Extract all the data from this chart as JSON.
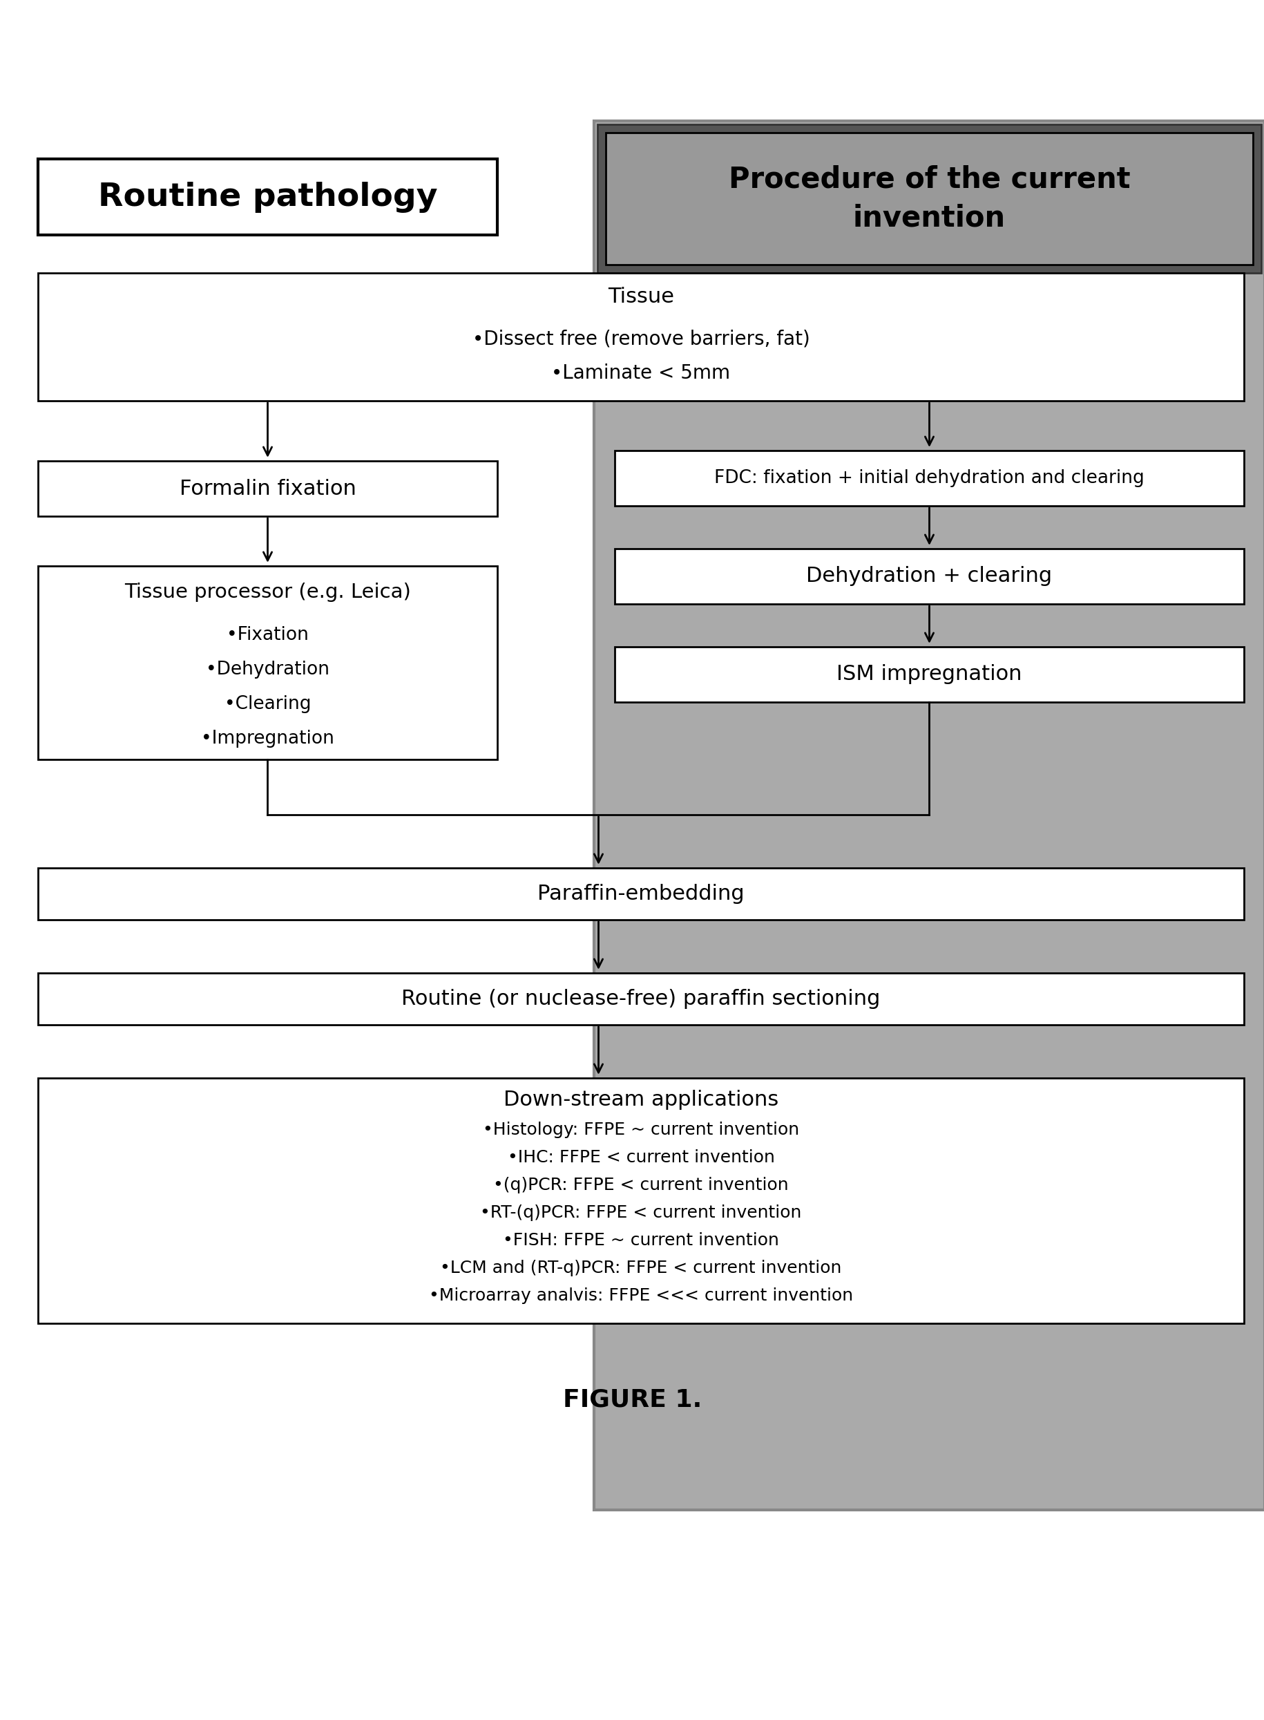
{
  "fig_width": 18.31,
  "fig_height": 24.89,
  "bg_color": "#ffffff",
  "figure_caption": "FIGURE 1.",
  "routine_header": "Routine pathology",
  "current_header_line1": "Procedure of the current",
  "current_header_line2": "invention",
  "tissue_title": "Tissue",
  "tissue_bullet1": "•Dissect free (remove barriers, fat)",
  "tissue_bullet2": "•Laminate < 5mm",
  "formalin_box": "Formalin fixation",
  "processor_title": "Tissue processor (e.g. Leica)",
  "processor_bullet1": "•Fixation",
  "processor_bullet2": "•Dehydration",
  "processor_bullet3": "•Clearing",
  "processor_bullet4": "•Impregnation",
  "fdc_box": "FDC: fixation + initial dehydration and clearing",
  "dehydration_box": "Dehydration + clearing",
  "ism_box": "ISM impregnation",
  "paraffin_box": "Paraffin-embedding",
  "sectioning_box": "Routine (or nuclease-free) paraffin sectioning",
  "downstream_title": "Down-stream applications",
  "downstream_bullet1": "•Histology: FFPE ~ current invention",
  "downstream_bullet2": "•IHC: FFPE < current invention",
  "downstream_bullet3": "•(q)PCR: FFPE < current invention",
  "downstream_bullet4": "•RT-(q)PCR: FFPE < current invention",
  "downstream_bullet5": "•FISH: FFPE ~ current invention",
  "downstream_bullet6": "•LCM and (RT-q)PCR: FFPE < current invention",
  "downstream_bullet7": "•Microarray analvis: FFPE <<< current invention",
  "gray_outer": "#888888",
  "gray_inner": "#aaaaaa",
  "gray_header_outer": "#555555",
  "gray_header_inner": "#999999"
}
